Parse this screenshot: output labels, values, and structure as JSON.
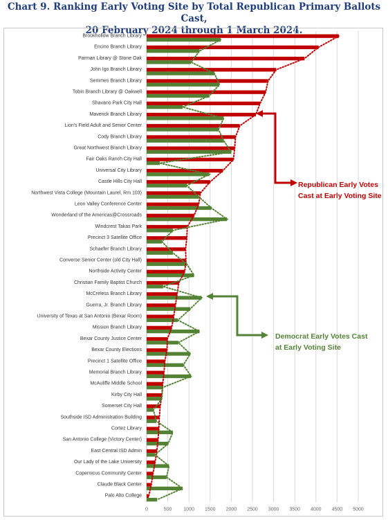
{
  "title_line1": "Chart 9. Ranking Early Voting Site by Total Republican Primary Ballots Cast,",
  "title_line2": "20 February 2024 through 1 March 2024.",
  "annotations": {
    "republican_line1": "Republican Early Votes",
    "republican_line2": "Cast at Early Voting Site",
    "democrat_line1": "Democrat Early Votes Cast",
    "democrat_line2": "at Early Voting Site"
  },
  "colors": {
    "republican": "#c00000",
    "democrat": "#548235",
    "title": "#1f3d7a",
    "grid": "#d9d9d9"
  },
  "chart_data": {
    "type": "bar",
    "orientation": "horizontal",
    "xlim": [
      0,
      5000
    ],
    "x_ticks": [
      "0",
      "500",
      "1000",
      "1500",
      "2000",
      "2500",
      "3000",
      "3500",
      "4000",
      "4500",
      "5000"
    ],
    "grid": true,
    "trendlines": "dotted lines following each series",
    "categories": [
      "Brookhollow Branch Library",
      "Encino Branch Library",
      "Parman Library @ Stone Oak",
      "John Igo Branch Library",
      "Semmes Branch Library",
      "Tobin Branch Library @ Oakwell",
      "Shavano Park City Hall",
      "Maverick Branch Library",
      "Lion's Field Adult and Senior Center",
      "Cody Branch Library",
      "Great Northwest Branch Library",
      "Fair Oaks Ranch City Hall",
      "Universal City Library",
      "Castle Hills City Hall",
      "Northwest Vista College (Mountain Laurel, Rm 103)",
      "Leon Valley Conference Center",
      "Wonderland of the Americas@Crossroads",
      "Windcrest Takas Park",
      "Precinct 3 Satellite Office",
      "Schaefer Branch Library",
      "Converse Senior Center (old City Hall)",
      "Northside Activity Center",
      "Christian Family Baptist Church",
      "McCreless Branch Library",
      "Guerra, Jr. Branch Library",
      "University of Texas at San Antonio (Bexar Room)",
      "Mission Branch Library",
      "Bexar County Justice Center",
      "Bexar County Elections",
      "Precinct 1 Satellite Office",
      "Memorial Branch Library",
      "McAuliffe Middle School",
      "Kirby City Hall",
      "Somerset City Hall",
      "Southside ISD Administration Building",
      "Cortez Library",
      "San Antonio College (Victory Center)",
      "East Central ISD Admin",
      "Our Lady of the Lake University",
      "Copernicus Community Center",
      "Claude Black Center",
      "Palo Alto College"
    ],
    "series": [
      {
        "name": "Republican Early Votes Cast at Early Voting Site",
        "values": [
          4540,
          4060,
          3730,
          3060,
          2870,
          2810,
          2680,
          2580,
          2200,
          2100,
          2080,
          2050,
          1800,
          1500,
          1270,
          1230,
          1120,
          960,
          950,
          920,
          930,
          900,
          760,
          720,
          680,
          640,
          590,
          490,
          480,
          430,
          410,
          380,
          360,
          320,
          300,
          290,
          270,
          240,
          200,
          150,
          110,
          50
        ]
      },
      {
        "name": "Democrat Early Votes Cast at Early Voting Site",
        "values": [
          1750,
          1250,
          1050,
          1600,
          1720,
          1480,
          850,
          1820,
          1700,
          1820,
          2000,
          310,
          1480,
          950,
          1230,
          1530,
          1900,
          620,
          360,
          620,
          950,
          1120,
          390,
          1300,
          1030,
          740,
          1250,
          750,
          1030,
          870,
          1050,
          380,
          360,
          160,
          230,
          620,
          510,
          200,
          530,
          470,
          850,
          250
        ]
      }
    ]
  }
}
